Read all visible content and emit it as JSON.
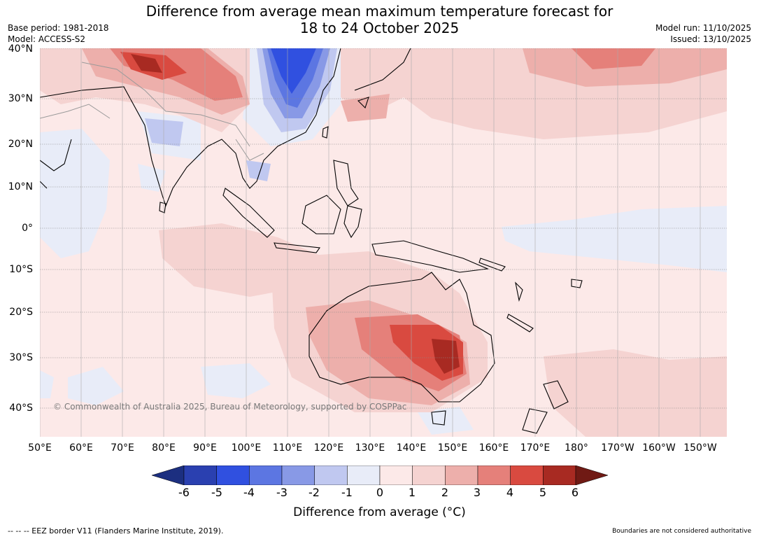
{
  "title": {
    "line1": "Difference from average mean maximum temperature forecast for",
    "line2": "18 to 24 October 2025"
  },
  "meta": {
    "base_period": "Base period: 1981-2018",
    "model": "Model: ACCESS-S2",
    "model_run": "Model run: 11/10/2025",
    "issued": "Issued: 13/10/2025"
  },
  "map": {
    "lat_labels": [
      "40°N",
      "30°N",
      "20°N",
      "10°N",
      "0°",
      "10°S",
      "20°S",
      "30°S",
      "40°S"
    ],
    "lon_labels": [
      "50°E",
      "60°E",
      "70°E",
      "80°E",
      "90°E",
      "100°E",
      "110°E",
      "120°E",
      "130°E",
      "140°E",
      "150°E",
      "160°E",
      "170°E",
      "180°",
      "170°W",
      "160°W",
      "150°W"
    ],
    "copyright": "© Commonwealth of Australia 2025, Bureau of Meteorology, supported by COSPPac"
  },
  "colorbar": {
    "ticks": [
      "-6",
      "-5",
      "-4",
      "-3",
      "-2",
      "-1",
      "0",
      "1",
      "2",
      "3",
      "4",
      "5",
      "6"
    ],
    "colors": {
      "under": "#1c2f80",
      "bins": [
        "#2a40b0",
        "#3050e0",
        "#5c76e2",
        "#8899e6",
        "#c0c8f0",
        "#e8ecf8",
        "#fce9e8",
        "#f5d3d1",
        "#edafab",
        "#e5807a",
        "#d94a40",
        "#a82a22"
      ],
      "over": "#701a14"
    },
    "label": "Difference from average (°C)"
  },
  "footer": {
    "eez": "--  --  -- EEZ border V11 (Flanders Marine Institute, 2019).",
    "disclaimer": "Boundaries are not considered authoritative"
  }
}
